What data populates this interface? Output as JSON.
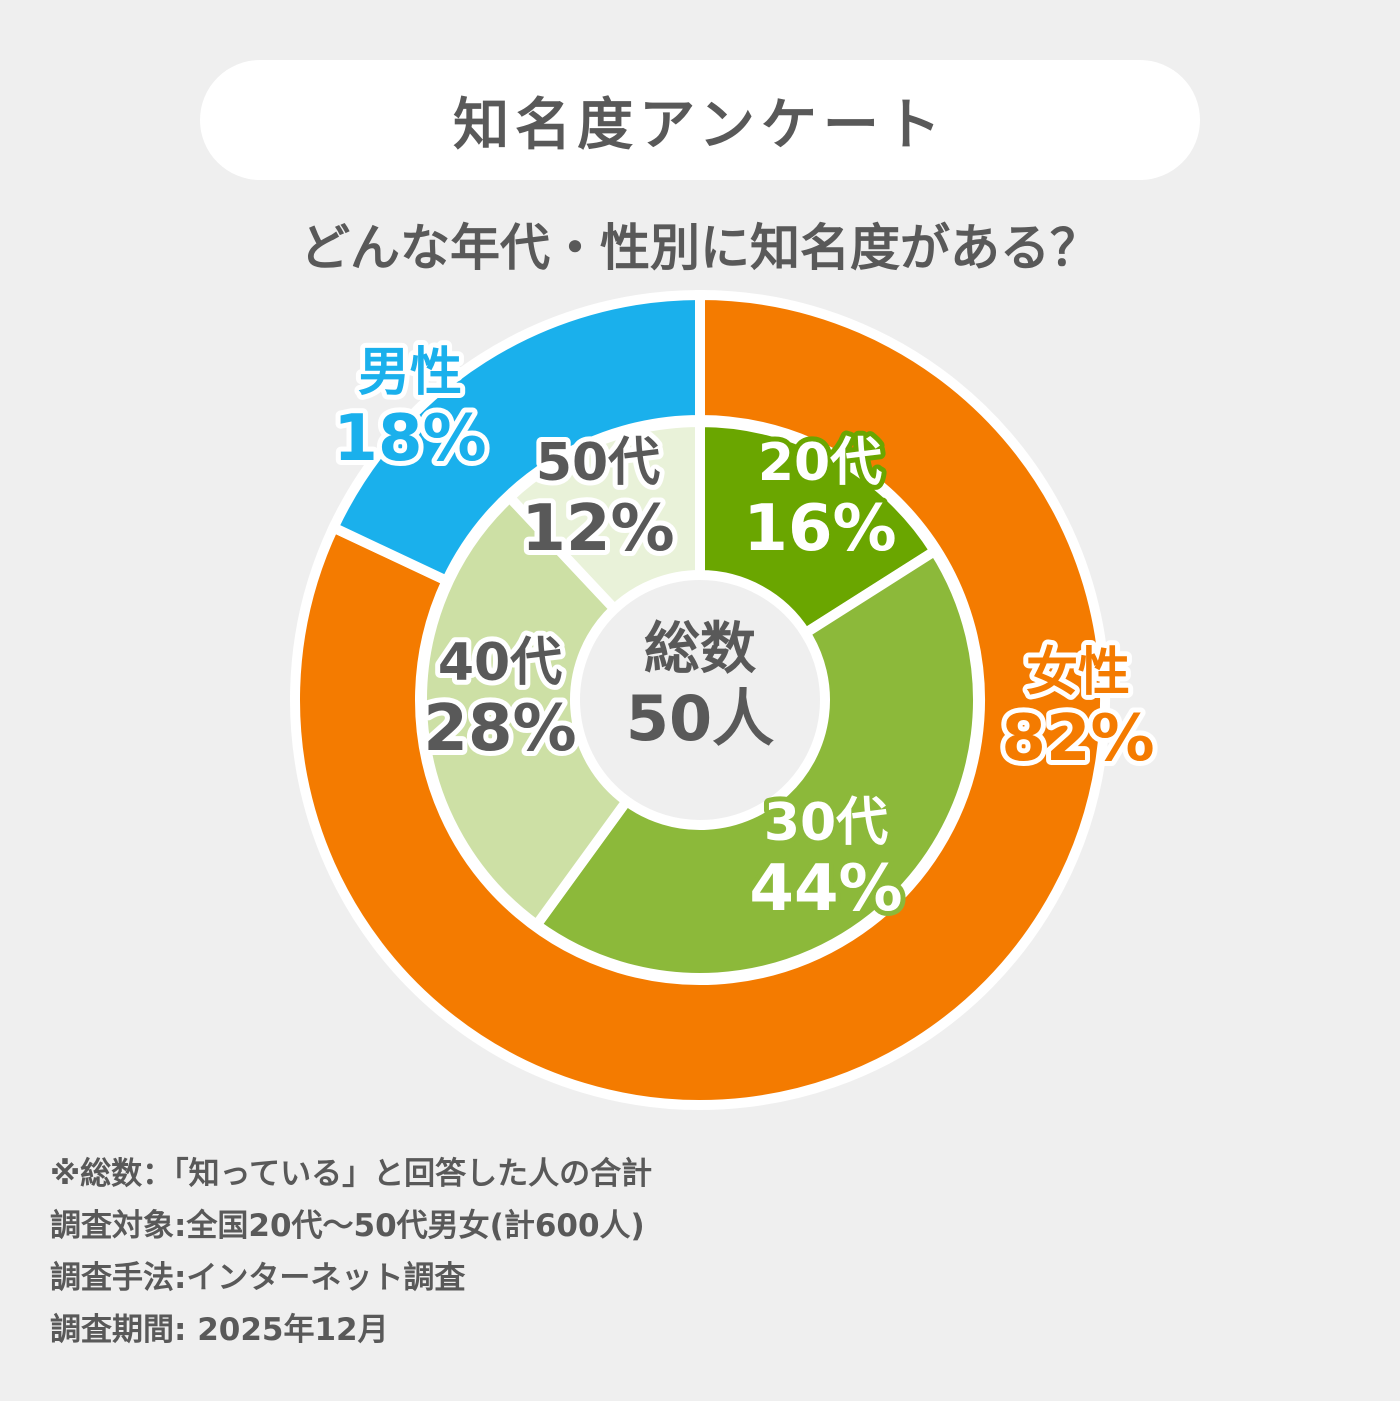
{
  "header": {
    "title": "知名度アンケート",
    "subtitle": "どんな年代・性別に知名度がある？"
  },
  "chart_data": {
    "type": "donut",
    "outer": {
      "series": [
        {
          "name": "女性",
          "value": 82,
          "label": "82%",
          "color": "#f47b00"
        },
        {
          "name": "男性",
          "value": 18,
          "label": "18%",
          "color": "#1ab0ec"
        }
      ]
    },
    "inner": {
      "series": [
        {
          "name": "20代",
          "value": 16,
          "label": "16%",
          "color": "#6aa600"
        },
        {
          "name": "30代",
          "value": 44,
          "label": "44%",
          "color": "#8cb93a"
        },
        {
          "name": "40代",
          "value": 28,
          "label": "28%",
          "color": "#cde0a5"
        },
        {
          "name": "50代",
          "value": 12,
          "label": "12%",
          "color": "#e9f2d9"
        }
      ]
    },
    "center": {
      "label": "総数",
      "value": "50人"
    }
  },
  "notes": [
    "※総数：「知っている」と回答した人の合計",
    "調査対象:全国20代～50代男女(計600人)",
    "調査手法:インターネット調査",
    "調査期間: 2025年12月"
  ]
}
